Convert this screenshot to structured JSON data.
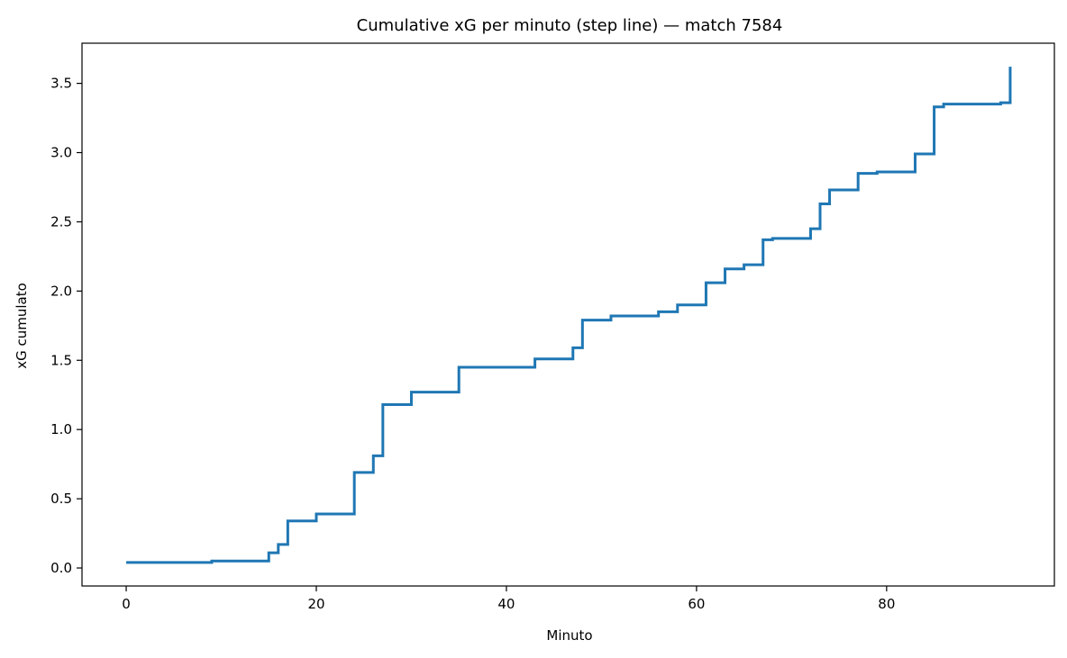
{
  "chart_data": {
    "type": "line",
    "drawstyle": "steps-post",
    "title": "Cumulative xG per minuto (step line) — match 7584",
    "xlabel": "Minuto",
    "ylabel": "xG cumulato",
    "xlim": [
      -4.65,
      97.65
    ],
    "ylim": [
      -0.13,
      3.79
    ],
    "xticks": [
      0,
      20,
      40,
      60,
      80
    ],
    "yticks": [
      0.0,
      0.5,
      1.0,
      1.5,
      2.0,
      2.5,
      3.0,
      3.5
    ],
    "xtick_labels": [
      "0",
      "20",
      "40",
      "60",
      "80"
    ],
    "ytick_labels": [
      "0.0",
      "0.5",
      "1.0",
      "1.5",
      "2.0",
      "2.5",
      "3.0",
      "3.5"
    ],
    "grid": false,
    "line_color": "#1f77b4",
    "series": [
      {
        "x": [
          0,
          9,
          15,
          16,
          17,
          20,
          24,
          26,
          27,
          30,
          35,
          43,
          47,
          48,
          51,
          56,
          58,
          61,
          63,
          65,
          67,
          68,
          72,
          73,
          74,
          77,
          79,
          83,
          85,
          86,
          92,
          93
        ],
        "y": [
          0.04,
          0.05,
          0.11,
          0.17,
          0.34,
          0.39,
          0.69,
          0.81,
          1.18,
          1.27,
          1.45,
          1.51,
          1.59,
          1.79,
          1.82,
          1.85,
          1.9,
          2.06,
          2.16,
          2.19,
          2.37,
          2.38,
          2.45,
          2.63,
          2.73,
          2.85,
          2.86,
          2.99,
          3.33,
          3.35,
          3.36,
          3.62
        ]
      }
    ]
  }
}
